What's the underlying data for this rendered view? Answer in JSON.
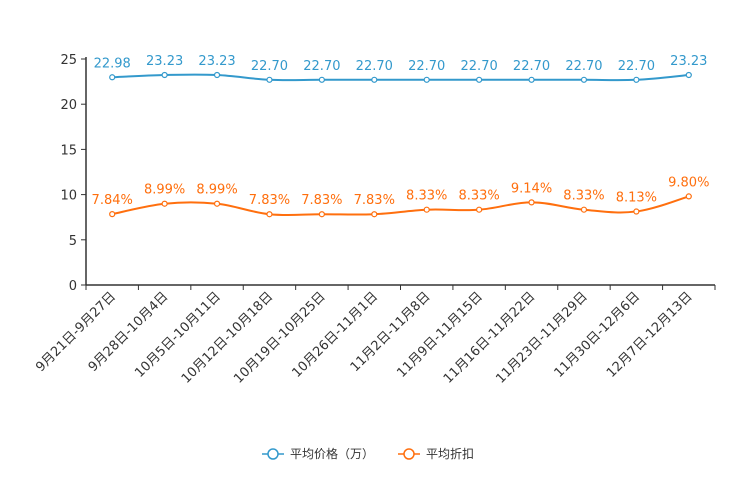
{
  "chart_data": {
    "type": "line",
    "title": "",
    "xlabel": "",
    "ylabel": "",
    "ylim": [
      0,
      25
    ],
    "yticks": [
      0,
      5,
      10,
      15,
      20,
      25
    ],
    "grid": false,
    "legend_position": "bottom",
    "categories": [
      "9月21日-9月27日",
      "9月28日-10月4日",
      "10月5日-10月11日",
      "10月12日-10月18日",
      "10月19日-10月25日",
      "10月26日-11月1日",
      "11月2日-11月8日",
      "11月9日-11月15日",
      "11月16日-11月22日",
      "11月23日-11月29日",
      "11月30日-12月6日",
      "12月7日-12月13日"
    ],
    "series": [
      {
        "name": "平均价格（万）",
        "color": "#3399cc",
        "values": [
          22.98,
          23.23,
          23.23,
          22.7,
          22.7,
          22.7,
          22.7,
          22.7,
          22.7,
          22.7,
          22.7,
          23.23
        ],
        "labels": [
          "22.98",
          "23.23",
          "23.23",
          "22.70",
          "22.70",
          "22.70",
          "22.70",
          "22.70",
          "22.70",
          "22.70",
          "22.70",
          "23.23"
        ]
      },
      {
        "name": "平均折扣",
        "color": "#ff6f0e",
        "values": [
          7.84,
          8.99,
          8.99,
          7.83,
          7.83,
          7.83,
          8.33,
          8.33,
          9.14,
          8.33,
          8.13,
          9.8
        ],
        "labels": [
          "7.84%",
          "8.99%",
          "8.99%",
          "7.83%",
          "7.83%",
          "7.83%",
          "8.33%",
          "8.33%",
          "9.14%",
          "8.33%",
          "8.13%",
          "9.80%"
        ]
      }
    ]
  }
}
